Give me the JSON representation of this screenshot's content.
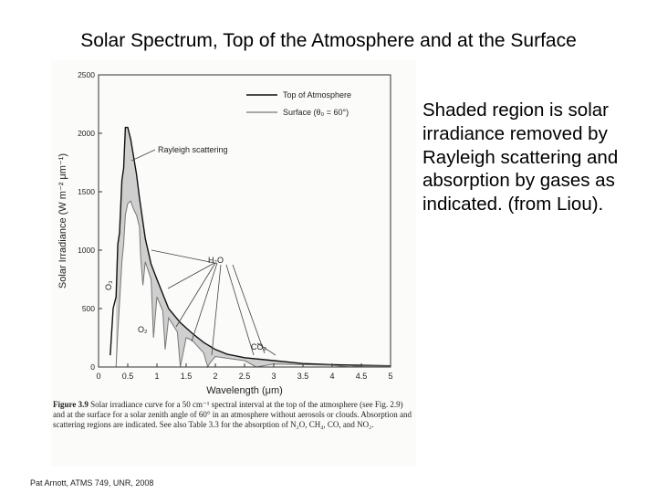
{
  "slide": {
    "title": "Solar Spectrum, Top of the Atmosphere and at the Surface",
    "side_text": "Shaded region is solar irradiance removed by Rayleigh scattering and absorption by gases as indicated. (from Liou).",
    "footer": "Pat Arnott, ATMS 749, UNR, 2008"
  },
  "figure": {
    "caption_label": "Figure 3.9",
    "caption_text": "Solar irradiance curve for a 50 cm⁻¹ spectral interval at the top of the atmosphere (see Fig. 2.9) and at the surface for a solar zenith angle of 60° in an atmosphere without aerosols or clouds. Absorption and scattering regions are indicated. See also Table 3.3 for the absorption of N₂O, CH₄, CO, and NO₂."
  },
  "chart_data": {
    "type": "line",
    "xlabel": "Wavelength (μm)",
    "ylabel": "Solar Irradiance (W m⁻² μm⁻¹)",
    "xlim": [
      0,
      5
    ],
    "ylim": [
      0,
      2500
    ],
    "x_ticks": [
      0,
      0.5,
      1,
      1.5,
      2,
      2.5,
      3,
      3.5,
      4,
      4.5,
      5
    ],
    "x_tick_labels": [
      "0",
      "0.5",
      "1",
      "1.5",
      "2",
      "2.5",
      "3",
      "3.5",
      "4",
      "4.5",
      "5"
    ],
    "y_ticks": [
      0,
      500,
      1000,
      1500,
      2000,
      2500
    ],
    "y_tick_labels": [
      "0",
      "500",
      "1000",
      "1500",
      "2000",
      "2500"
    ],
    "legend_position": "top-right",
    "series": [
      {
        "name": "Top of Atmosphere",
        "color": "#111111",
        "x": [
          0.2,
          0.25,
          0.3,
          0.33,
          0.36,
          0.4,
          0.43,
          0.46,
          0.5,
          0.55,
          0.6,
          0.65,
          0.7,
          0.8,
          0.9,
          1.0,
          1.2,
          1.4,
          1.6,
          1.8,
          2.0,
          2.2,
          2.5,
          3.0,
          3.5,
          4.0,
          4.5,
          5.0
        ],
        "values": [
          100,
          500,
          600,
          1050,
          1150,
          1600,
          1700,
          2050,
          2050,
          1950,
          1800,
          1650,
          1450,
          1100,
          880,
          750,
          500,
          380,
          290,
          210,
          150,
          110,
          80,
          55,
          30,
          20,
          15,
          10
        ]
      },
      {
        "name": "Surface (θ₀ = 60°)",
        "color": "#777777",
        "x": [
          0.3,
          0.33,
          0.36,
          0.4,
          0.43,
          0.46,
          0.5,
          0.55,
          0.6,
          0.65,
          0.7,
          0.72,
          0.76,
          0.8,
          0.9,
          0.94,
          1.0,
          1.1,
          1.14,
          1.2,
          1.35,
          1.4,
          1.5,
          1.6,
          1.8,
          1.87,
          1.9,
          2.0,
          2.2,
          2.5,
          2.7,
          3.0,
          3.5,
          4.0,
          4.3,
          4.5,
          5.0
        ],
        "values": [
          0,
          300,
          550,
          900,
          1050,
          1300,
          1400,
          1420,
          1350,
          1300,
          1200,
          950,
          700,
          900,
          750,
          250,
          600,
          480,
          150,
          420,
          300,
          0,
          250,
          230,
          120,
          0,
          30,
          90,
          75,
          55,
          0,
          25,
          20,
          15,
          0,
          10,
          8
        ]
      }
    ],
    "annotations": [
      "Rayleigh scattering",
      "H₂O",
      "O₃",
      "O₂",
      "CO₂"
    ]
  }
}
